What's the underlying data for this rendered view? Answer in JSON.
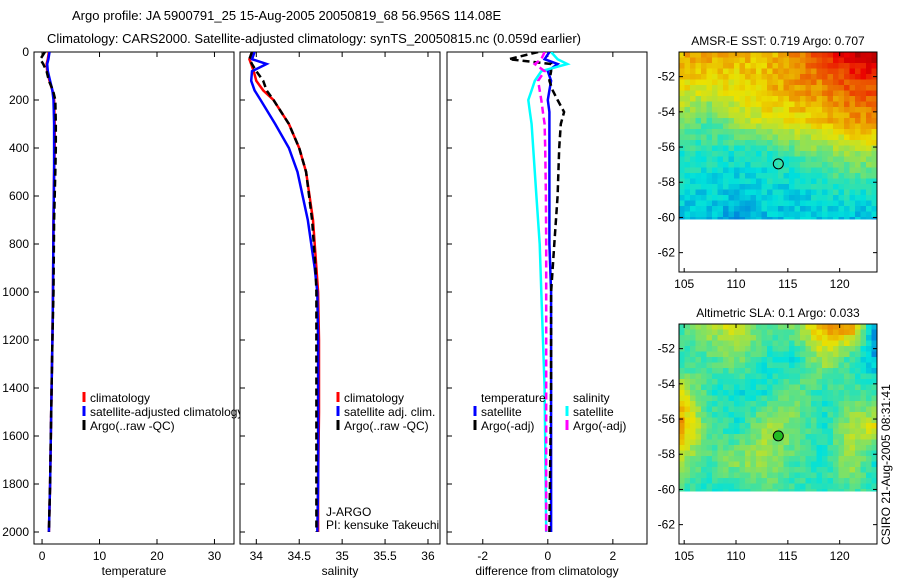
{
  "title_line1": "Argo profile: JA 5900791_25 15-Aug-2005 20050819_68 56.956S 114.08E",
  "title_line2": "Climatology: CARS2000. Satellite-adjusted climatology: synTS_20050815.nc (0.059d earlier)",
  "side_label": "CSIRO 21-Aug-2005 08:31:41",
  "colors": {
    "clim": "#ff0000",
    "sat": "#0000ff",
    "argo": "#000000",
    "sal_sat": "#00ffff",
    "sal_argo": "#ff00ff"
  },
  "chart_data": [
    {
      "type": "line",
      "xlabel": "temperature",
      "ylabel": "",
      "xlim": [
        -1.4,
        33.4
      ],
      "ylim": [
        0,
        2050
      ],
      "xticks": [
        0,
        10,
        20,
        30
      ],
      "yticks": [
        0,
        200,
        400,
        600,
        800,
        1000,
        1200,
        1400,
        1600,
        1800,
        2000
      ],
      "legend": {
        "placement": "bottom-right",
        "entries": [
          "climatology",
          "satellite-adjusted climatology",
          "Argo(..raw -QC)"
        ]
      },
      "depth": [
        0,
        30,
        50,
        80,
        120,
        160,
        200,
        300,
        400,
        500,
        700,
        1000,
        1200,
        1500,
        1800,
        2000
      ],
      "series": [
        {
          "name": "climatology",
          "style": "clim",
          "values": [
            1.2,
            1.0,
            0.8,
            0.9,
            1.3,
            1.8,
            2.1,
            2.2,
            2.2,
            2.1,
            2.0,
            1.9,
            1.8,
            1.6,
            1.4,
            1.2
          ]
        },
        {
          "name": "satellite-adjusted climatology",
          "style": "sat",
          "values": [
            1.3,
            1.1,
            0.9,
            1.0,
            1.4,
            1.8,
            2.0,
            2.1,
            2.1,
            2.1,
            2.0,
            1.9,
            1.8,
            1.6,
            1.4,
            1.2
          ]
        },
        {
          "name": "Argo(..raw -QC)",
          "style": "argo",
          "values": [
            0.5,
            -0.3,
            0.2,
            0.8,
            1.2,
            1.9,
            2.3,
            2.4,
            2.4,
            2.3,
            2.1,
            2.0,
            1.8,
            1.6,
            1.4,
            1.2
          ]
        }
      ]
    },
    {
      "type": "line",
      "xlabel": "salinity",
      "ylabel": "",
      "xlim": [
        33.81,
        36.14
      ],
      "ylim": [
        0,
        2050
      ],
      "xticks": [
        34,
        34.5,
        35,
        35.5,
        36
      ],
      "yticks": [],
      "legend": {
        "placement": "bottom-right",
        "entries": [
          "climatology",
          "satellite adj. clim.",
          "Argo(..raw -QC)"
        ]
      },
      "annotations": [
        "J-ARGO",
        "PI: kensuke Takeuchi"
      ],
      "depth": [
        0,
        30,
        50,
        80,
        120,
        160,
        200,
        300,
        400,
        500,
        700,
        900,
        1000,
        1200,
        1500,
        1800,
        2000
      ],
      "series": [
        {
          "name": "climatology",
          "style": "clim",
          "values": [
            33.95,
            33.92,
            33.94,
            33.97,
            34.0,
            34.08,
            34.2,
            34.38,
            34.5,
            34.58,
            34.66,
            34.7,
            34.72,
            34.73,
            34.73,
            34.72,
            34.72
          ]
        },
        {
          "name": "satellite adj. clim.",
          "style": "sat",
          "values": [
            33.98,
            33.95,
            34.12,
            33.95,
            33.94,
            33.98,
            34.05,
            34.22,
            34.38,
            34.48,
            34.6,
            34.68,
            34.71,
            34.72,
            34.72,
            34.72,
            34.71
          ]
        },
        {
          "name": "Argo(..raw -QC)",
          "style": "argo",
          "values": [
            33.95,
            33.92,
            33.95,
            34.0,
            34.08,
            34.12,
            34.2,
            34.38,
            34.5,
            34.58,
            34.65,
            34.69,
            34.7,
            34.7,
            34.7,
            34.7,
            34.7
          ]
        }
      ]
    },
    {
      "type": "line",
      "xlabel": "difference from climatology",
      "ylabel": "",
      "xlim": [
        -3.1,
        3.05
      ],
      "ylim": [
        0,
        2050
      ],
      "xticks": [
        -2,
        0,
        2
      ],
      "yticks": [],
      "legend": {
        "placement": "bottom",
        "groups": [
          "temperature",
          "salinity"
        ],
        "entries": [
          "satellite",
          "Argo(-adj)",
          "satellite",
          "Argo(-adj)"
        ]
      },
      "depth": [
        0,
        30,
        50,
        80,
        120,
        160,
        200,
        250,
        300,
        400,
        600,
        800,
        1000,
        1400,
        2000
      ],
      "series": [
        {
          "name": "temperature satellite",
          "style": "sat",
          "values": [
            0.05,
            -0.1,
            0.3,
            0.0,
            0.1,
            0.05,
            0.0,
            0.05,
            0.05,
            0.05,
            0.05,
            0.05,
            0.1,
            0.1,
            0.1
          ]
        },
        {
          "name": "temperature Argo(-adj)",
          "style": "argo",
          "values": [
            -0.3,
            -1.2,
            0.1,
            0.1,
            0.05,
            0.15,
            0.3,
            0.5,
            0.4,
            0.35,
            0.3,
            0.2,
            0.1,
            0.1,
            0.05
          ]
        },
        {
          "name": "salinity satellite",
          "style": "sal_sat",
          "values": [
            0.1,
            0.3,
            0.6,
            -0.2,
            -0.4,
            -0.5,
            -0.6,
            -0.55,
            -0.5,
            -0.45,
            -0.35,
            -0.25,
            -0.2,
            -0.1,
            -0.05
          ]
        },
        {
          "name": "salinity Argo(-adj)",
          "style": "sal_argo",
          "values": [
            -0.1,
            -0.2,
            -0.4,
            -0.1,
            -0.3,
            -0.25,
            -0.2,
            -0.15,
            -0.1,
            -0.08,
            -0.06,
            -0.05,
            -0.05,
            -0.05,
            -0.05
          ]
        }
      ]
    },
    {
      "type": "heatmap",
      "title": "AMSR-E SST: 0.719 Argo: 0.707",
      "xlim": [
        104.5,
        123.6
      ],
      "ylim": [
        -50.6,
        -63.1
      ],
      "xticks": [
        105,
        110,
        115,
        120
      ],
      "yticks": [
        -52,
        -54,
        -56,
        -58,
        -60,
        -62
      ],
      "data_lat_range": [
        -50.6,
        -60.1
      ],
      "marker": {
        "lon": 114.08,
        "lat": -56.956
      },
      "grid": [
        [
          0.68,
          0.7,
          0.68,
          0.66,
          0.72,
          0.8,
          0.9,
          0.95
        ],
        [
          0.62,
          0.6,
          0.62,
          0.66,
          0.7,
          0.72,
          0.78,
          0.8
        ],
        [
          0.5,
          0.45,
          0.55,
          0.6,
          0.62,
          0.66,
          0.7,
          0.72
        ],
        [
          0.4,
          0.42,
          0.38,
          0.4,
          0.45,
          0.5,
          0.52,
          0.55
        ],
        [
          0.38,
          0.36,
          0.36,
          0.38,
          0.36,
          0.4,
          0.42,
          0.4
        ],
        [
          0.32,
          0.34,
          0.3,
          0.33,
          0.34,
          0.33,
          0.32,
          0.33
        ]
      ]
    },
    {
      "type": "heatmap",
      "title": "Altimetric SLA: 0.1 Argo: 0.033",
      "xlim": [
        104.5,
        123.6
      ],
      "ylim": [
        -50.6,
        -63.1
      ],
      "xticks": [
        105,
        110,
        115,
        120
      ],
      "yticks": [
        -52,
        -54,
        -56,
        -58,
        -60,
        -62
      ],
      "data_lat_range": [
        -50.6,
        -60.1
      ],
      "marker": {
        "lon": 114.08,
        "lat": -56.956
      },
      "grid": [
        [
          0.45,
          0.55,
          0.6,
          0.45,
          0.5,
          0.7,
          0.72,
          0.2
        ],
        [
          0.42,
          0.45,
          0.5,
          0.4,
          0.38,
          0.55,
          0.42,
          0.3
        ],
        [
          0.6,
          0.42,
          0.38,
          0.4,
          0.5,
          0.4,
          0.45,
          0.42
        ],
        [
          0.72,
          0.45,
          0.4,
          0.55,
          0.5,
          0.4,
          0.55,
          0.62
        ],
        [
          0.55,
          0.45,
          0.52,
          0.55,
          0.45,
          0.4,
          0.55,
          0.35
        ],
        [
          0.42,
          0.4,
          0.42,
          0.45,
          0.42,
          0.4,
          0.45,
          0.4
        ]
      ]
    }
  ]
}
